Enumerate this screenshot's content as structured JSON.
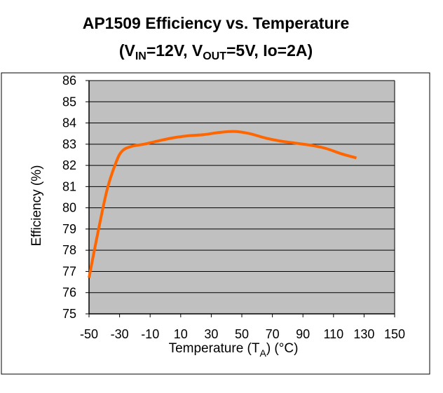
{
  "title": {
    "line1": "AP1509 Efficiency vs. Temperature",
    "line2": {
      "open": "(V",
      "vin_sub": "IN",
      "vin_rest": "=12V, V",
      "vout_sub": "OUT",
      "vout_rest": "=5V, Io=2A)"
    }
  },
  "chart_data": {
    "type": "line",
    "title": "AP1509 Efficiency vs. Temperature (VIN=12V, VOUT=5V, Io=2A)",
    "xlabel": "Temperature (TA)   (°C)",
    "ylabel": "Efficiency   (%)",
    "xlim": [
      -50,
      150
    ],
    "ylim": [
      75,
      86
    ],
    "xticks": [
      -50,
      -30,
      -10,
      10,
      30,
      50,
      70,
      90,
      110,
      130,
      150
    ],
    "yticks": [
      75,
      76,
      77,
      78,
      79,
      80,
      81,
      82,
      83,
      84,
      85,
      86
    ],
    "grid": "horizontal",
    "plot_background": "#c0c0c0",
    "series": [
      {
        "color": "#ff6600",
        "x": [
          -50,
          -44,
          -38,
          -32,
          -28,
          -22,
          -14,
          -5,
          5,
          15,
          25,
          35,
          45,
          55,
          65,
          75,
          85,
          95,
          105,
          115,
          125
        ],
        "y": [
          76.7,
          78.9,
          80.9,
          82.2,
          82.7,
          82.9,
          83.0,
          83.15,
          83.3,
          83.4,
          83.45,
          83.55,
          83.6,
          83.5,
          83.3,
          83.15,
          83.05,
          82.95,
          82.8,
          82.55,
          82.35
        ]
      }
    ]
  }
}
